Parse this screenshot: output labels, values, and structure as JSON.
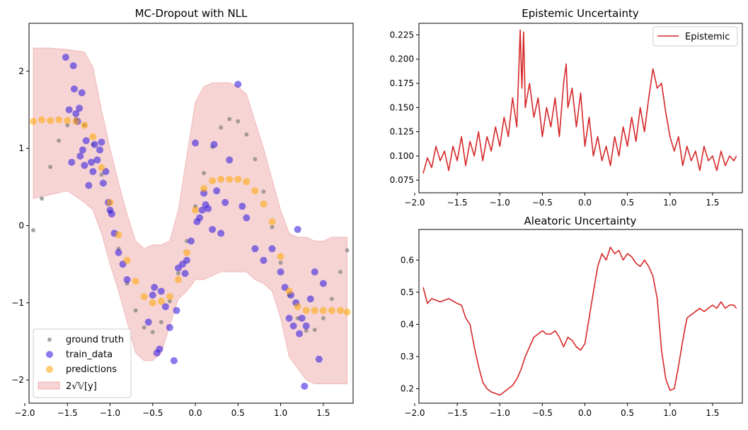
{
  "chart_data": [
    {
      "type": "scatter",
      "title": "MC-Dropout with NLL",
      "xlim": [
        -1.95,
        1.85
      ],
      "ylim": [
        -2.3,
        2.62
      ],
      "xticks": [
        -2.0,
        -1.5,
        -1.0,
        -0.5,
        0.0,
        0.5,
        1.0,
        1.5
      ],
      "xtick_labels": [
        "−2.0",
        "−1.5",
        "−1.0",
        "−0.5",
        "0.0",
        "0.5",
        "1.0",
        "1.5"
      ],
      "yticks": [
        -2,
        -1,
        0,
        1,
        2
      ],
      "ytick_labels": [
        "−2",
        "−1",
        "0",
        "1",
        "2"
      ],
      "legend_position": "lower-left",
      "series": [
        {
          "name": "ground truth",
          "color": "#808080",
          "x": [
            -1.9,
            -1.8,
            -1.7,
            -1.6,
            -1.5,
            -1.4,
            -1.3,
            -1.2,
            -1.1,
            -1.0,
            -0.9,
            -0.8,
            -0.7,
            -0.6,
            -0.5,
            -0.4,
            -0.3,
            -0.2,
            -0.1,
            0.0,
            0.1,
            0.2,
            0.3,
            0.4,
            0.5,
            0.6,
            0.7,
            0.8,
            0.9,
            1.0,
            1.1,
            1.2,
            1.3,
            1.4,
            1.5,
            1.6,
            1.7,
            1.78
          ],
          "y": [
            -0.06,
            0.35,
            0.76,
            1.1,
            1.3,
            1.38,
            1.3,
            1.05,
            0.66,
            0.18,
            -0.3,
            -0.75,
            -1.1,
            -1.32,
            -1.38,
            -1.25,
            -0.98,
            -0.62,
            -0.2,
            0.25,
            0.68,
            1.02,
            1.27,
            1.38,
            1.35,
            1.18,
            0.86,
            0.44,
            -0.02,
            -0.48,
            -0.9,
            -1.2,
            -1.36,
            -1.35,
            -1.2,
            -0.95,
            -0.6,
            -0.32
          ]
        },
        {
          "name": "train_data",
          "color": "#3b23e0",
          "x": [
            -1.52,
            -1.48,
            -1.45,
            -1.43,
            -1.42,
            -1.4,
            -1.38,
            -1.36,
            -1.35,
            -1.33,
            -1.32,
            -1.3,
            -1.28,
            -1.25,
            -1.22,
            -1.2,
            -1.18,
            -1.15,
            -1.12,
            -1.1,
            -1.08,
            -1.05,
            -1.02,
            -1.0,
            -0.98,
            -0.95,
            -0.9,
            -0.85,
            -0.8,
            -0.55,
            -0.5,
            -0.48,
            -0.45,
            -0.42,
            -0.4,
            -0.35,
            -0.3,
            -0.25,
            -0.22,
            -0.2,
            -0.15,
            -0.12,
            -0.1,
            -0.05,
            0.0,
            0.02,
            0.05,
            0.08,
            0.1,
            0.12,
            0.15,
            0.2,
            0.22,
            0.25,
            0.3,
            0.35,
            0.4,
            0.5,
            0.55,
            0.6,
            0.7,
            0.8,
            0.9,
            1.0,
            1.05,
            1.1,
            1.12,
            1.15,
            1.18,
            1.2,
            1.22,
            1.25,
            1.28,
            1.3,
            1.35,
            1.4,
            1.45,
            1.5
          ],
          "y": [
            2.18,
            1.5,
            0.82,
            2.07,
            1.77,
            1.45,
            1.35,
            1.52,
            0.9,
            1.72,
            0.98,
            0.78,
            1.1,
            0.52,
            0.82,
            0.7,
            1.05,
            0.85,
            0.98,
            1.08,
            0.55,
            0.7,
            0.3,
            0.2,
            0.15,
            -0.1,
            -0.35,
            -0.5,
            -0.7,
            -1.25,
            -0.9,
            -0.8,
            -1.65,
            -1.6,
            -0.85,
            -1.05,
            -1.32,
            -1.75,
            -1.1,
            -0.55,
            -0.5,
            -0.62,
            -0.45,
            -0.2,
            1.07,
            0.05,
            0.1,
            0.2,
            0.42,
            0.27,
            0.22,
            -0.05,
            1.05,
            0.45,
            -0.1,
            0.3,
            0.85,
            1.83,
            0.25,
            0.1,
            -0.3,
            -0.45,
            -0.3,
            -0.6,
            -0.8,
            -1.2,
            -0.9,
            -1.3,
            -1.0,
            -0.05,
            -1.4,
            -1.2,
            -2.08,
            -1.3,
            -0.95,
            -0.6,
            -1.73,
            -0.75
          ]
        },
        {
          "name": "predictions",
          "color": "#ffa500",
          "x": [
            -1.9,
            -1.8,
            -1.7,
            -1.6,
            -1.5,
            -1.4,
            -1.3,
            -1.2,
            -1.1,
            -1.0,
            -0.9,
            -0.8,
            -0.7,
            -0.6,
            -0.5,
            -0.4,
            -0.3,
            -0.2,
            -0.1,
            0.0,
            0.1,
            0.2,
            0.3,
            0.4,
            0.5,
            0.6,
            0.7,
            0.8,
            0.9,
            1.0,
            1.1,
            1.2,
            1.3,
            1.4,
            1.5,
            1.6,
            1.7,
            1.78
          ],
          "y": [
            1.35,
            1.37,
            1.36,
            1.37,
            1.36,
            1.35,
            1.3,
            1.15,
            0.75,
            0.3,
            -0.12,
            -0.45,
            -0.72,
            -0.92,
            -1.0,
            -0.98,
            -0.92,
            -0.7,
            -0.35,
            0.2,
            0.48,
            0.58,
            0.6,
            0.6,
            0.6,
            0.57,
            0.45,
            0.28,
            0.05,
            -0.4,
            -0.85,
            -1.05,
            -1.1,
            -1.1,
            -1.1,
            -1.1,
            -1.1,
            -1.12
          ]
        }
      ],
      "band": {
        "name": "2√𝕍[y]",
        "color": "#d62728",
        "x": [
          -1.9,
          -1.7,
          -1.5,
          -1.3,
          -1.2,
          -1.1,
          -1.0,
          -0.9,
          -0.8,
          -0.7,
          -0.6,
          -0.5,
          -0.4,
          -0.3,
          -0.2,
          -0.1,
          0.0,
          0.1,
          0.2,
          0.3,
          0.4,
          0.5,
          0.6,
          0.7,
          0.8,
          0.9,
          1.0,
          1.1,
          1.2,
          1.3,
          1.4,
          1.5,
          1.6,
          1.7,
          1.78
        ],
        "upper": [
          2.3,
          2.3,
          2.28,
          2.25,
          2.05,
          1.5,
          1.0,
          0.55,
          0.15,
          -0.2,
          -0.3,
          -0.25,
          -0.25,
          -0.2,
          0.2,
          0.9,
          1.6,
          1.8,
          1.85,
          1.85,
          1.85,
          1.8,
          1.7,
          1.35,
          1.0,
          0.6,
          0.2,
          -0.1,
          -0.15,
          -0.15,
          -0.2,
          -0.2,
          -0.15,
          -0.15,
          -0.15
        ],
        "lower": [
          0.35,
          0.4,
          0.45,
          0.3,
          0.2,
          -0.1,
          -0.5,
          -0.85,
          -1.25,
          -1.65,
          -1.75,
          -1.75,
          -1.65,
          -1.3,
          -0.95,
          -0.85,
          -0.7,
          -0.7,
          -0.65,
          -0.6,
          -0.6,
          -0.6,
          -0.6,
          -0.7,
          -0.75,
          -0.85,
          -1.2,
          -1.7,
          -1.85,
          -2.0,
          -2.05,
          -2.05,
          -2.05,
          -2.05,
          -2.05
        ]
      },
      "legend": [
        "ground truth",
        "train_data",
        "predictions",
        "2√𝕍[y]"
      ]
    },
    {
      "type": "line",
      "title": "Epistemic Uncertainty",
      "xlim": [
        -1.95,
        1.85
      ],
      "ylim": [
        0.062,
        0.237
      ],
      "xticks": [
        -2.0,
        -1.5,
        -1.0,
        -0.5,
        0.0,
        0.5,
        1.0,
        1.5
      ],
      "xtick_labels": [
        "−2.0",
        "−1.5",
        "−1.0",
        "−0.5",
        "0.0",
        "0.5",
        "1.0",
        "1.5"
      ],
      "yticks": [
        0.075,
        0.1,
        0.125,
        0.15,
        0.175,
        0.2,
        0.225
      ],
      "ytick_labels": [
        "0.075",
        "0.100",
        "0.125",
        "0.150",
        "0.175",
        "0.200",
        "0.225"
      ],
      "legend_position": "top-right",
      "series": [
        {
          "name": "Epistemic",
          "color": "#d62728",
          "x": [
            -1.9,
            -1.85,
            -1.8,
            -1.75,
            -1.7,
            -1.65,
            -1.6,
            -1.55,
            -1.5,
            -1.45,
            -1.4,
            -1.35,
            -1.3,
            -1.25,
            -1.2,
            -1.15,
            -1.1,
            -1.05,
            -1.0,
            -0.95,
            -0.9,
            -0.85,
            -0.8,
            -0.76,
            -0.74,
            -0.72,
            -0.7,
            -0.65,
            -0.6,
            -0.55,
            -0.5,
            -0.45,
            -0.4,
            -0.35,
            -0.3,
            -0.25,
            -0.22,
            -0.2,
            -0.15,
            -0.1,
            -0.05,
            0.0,
            0.05,
            0.1,
            0.15,
            0.2,
            0.25,
            0.3,
            0.35,
            0.4,
            0.45,
            0.5,
            0.55,
            0.6,
            0.65,
            0.7,
            0.75,
            0.8,
            0.85,
            0.9,
            0.95,
            1.0,
            1.05,
            1.1,
            1.15,
            1.2,
            1.25,
            1.3,
            1.35,
            1.4,
            1.45,
            1.5,
            1.55,
            1.6,
            1.65,
            1.7,
            1.75,
            1.78
          ],
          "y": [
            0.082,
            0.098,
            0.088,
            0.11,
            0.095,
            0.105,
            0.085,
            0.11,
            0.095,
            0.12,
            0.09,
            0.115,
            0.1,
            0.125,
            0.095,
            0.12,
            0.105,
            0.13,
            0.11,
            0.14,
            0.12,
            0.16,
            0.13,
            0.23,
            0.17,
            0.228,
            0.15,
            0.175,
            0.14,
            0.16,
            0.12,
            0.15,
            0.13,
            0.16,
            0.12,
            0.175,
            0.195,
            0.15,
            0.17,
            0.13,
            0.165,
            0.11,
            0.14,
            0.1,
            0.12,
            0.095,
            0.11,
            0.09,
            0.12,
            0.1,
            0.13,
            0.11,
            0.14,
            0.115,
            0.15,
            0.125,
            0.16,
            0.19,
            0.17,
            0.175,
            0.145,
            0.12,
            0.105,
            0.12,
            0.09,
            0.11,
            0.095,
            0.105,
            0.085,
            0.11,
            0.095,
            0.1,
            0.085,
            0.105,
            0.09,
            0.1,
            0.095,
            0.1
          ]
        }
      ]
    },
    {
      "type": "line",
      "title": "Aleatoric Uncertainty",
      "xlim": [
        -1.95,
        1.85
      ],
      "ylim": [
        0.155,
        0.695
      ],
      "xticks": [
        -2.0,
        -1.5,
        -1.0,
        -0.5,
        0.0,
        0.5,
        1.0,
        1.5
      ],
      "xtick_labels": [
        "−2.0",
        "−1.5",
        "−1.0",
        "−0.5",
        "0.0",
        "0.5",
        "1.0",
        "1.5"
      ],
      "yticks": [
        0.2,
        0.3,
        0.4,
        0.5,
        0.6
      ],
      "ytick_labels": [
        "0.2",
        "0.3",
        "0.4",
        "0.5",
        "0.6"
      ],
      "series": [
        {
          "name": "Aleatoric",
          "color": "#d62728",
          "x": [
            -1.9,
            -1.85,
            -1.8,
            -1.7,
            -1.6,
            -1.5,
            -1.45,
            -1.4,
            -1.35,
            -1.3,
            -1.25,
            -1.2,
            -1.15,
            -1.1,
            -1.05,
            -1.0,
            -0.95,
            -0.9,
            -0.85,
            -0.8,
            -0.75,
            -0.7,
            -0.65,
            -0.6,
            -0.55,
            -0.5,
            -0.45,
            -0.4,
            -0.35,
            -0.3,
            -0.25,
            -0.2,
            -0.15,
            -0.1,
            -0.05,
            0.0,
            0.05,
            0.1,
            0.15,
            0.2,
            0.25,
            0.3,
            0.35,
            0.4,
            0.45,
            0.5,
            0.55,
            0.6,
            0.65,
            0.7,
            0.75,
            0.8,
            0.85,
            0.9,
            0.95,
            1.0,
            1.05,
            1.1,
            1.15,
            1.2,
            1.25,
            1.3,
            1.35,
            1.4,
            1.45,
            1.5,
            1.55,
            1.6,
            1.65,
            1.7,
            1.75,
            1.78
          ],
          "y": [
            0.515,
            0.465,
            0.48,
            0.47,
            0.48,
            0.465,
            0.46,
            0.42,
            0.4,
            0.33,
            0.27,
            0.22,
            0.2,
            0.19,
            0.185,
            0.18,
            0.19,
            0.2,
            0.21,
            0.23,
            0.26,
            0.3,
            0.33,
            0.36,
            0.37,
            0.38,
            0.37,
            0.37,
            0.38,
            0.36,
            0.33,
            0.36,
            0.35,
            0.33,
            0.32,
            0.34,
            0.42,
            0.5,
            0.58,
            0.62,
            0.6,
            0.64,
            0.62,
            0.63,
            0.6,
            0.62,
            0.61,
            0.59,
            0.58,
            0.6,
            0.58,
            0.55,
            0.48,
            0.32,
            0.23,
            0.195,
            0.2,
            0.27,
            0.35,
            0.42,
            0.43,
            0.44,
            0.45,
            0.44,
            0.45,
            0.46,
            0.45,
            0.47,
            0.45,
            0.46,
            0.46,
            0.45
          ]
        }
      ]
    }
  ]
}
